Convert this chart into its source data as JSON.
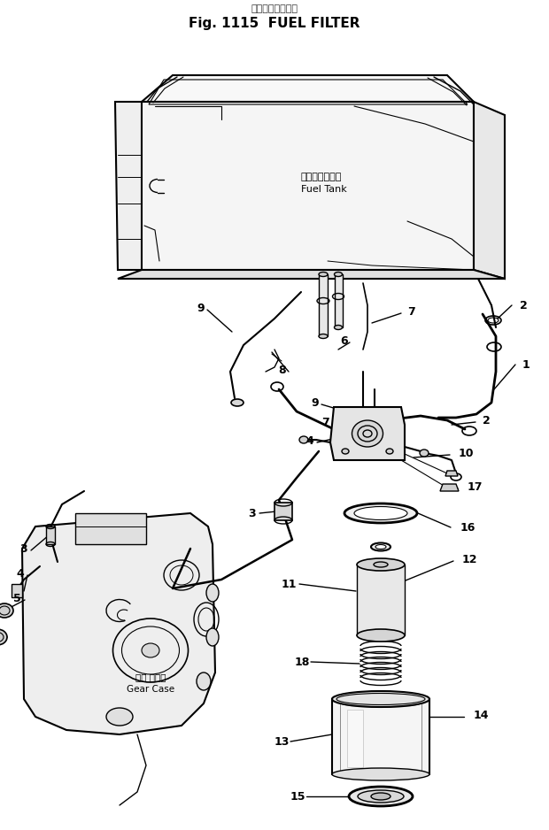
{
  "title_jp": "フェエルフィルタ",
  "title_en": "Fig. 1115  FUEL FILTER",
  "fuel_tank_label_jp": "フェエルタンク",
  "fuel_tank_label_en": "Fuel Tank",
  "gear_case_label_jp": "ギヤ ケース",
  "gear_case_label_en": "Gear Case",
  "bg_color": "#ffffff",
  "line_color": "#000000"
}
